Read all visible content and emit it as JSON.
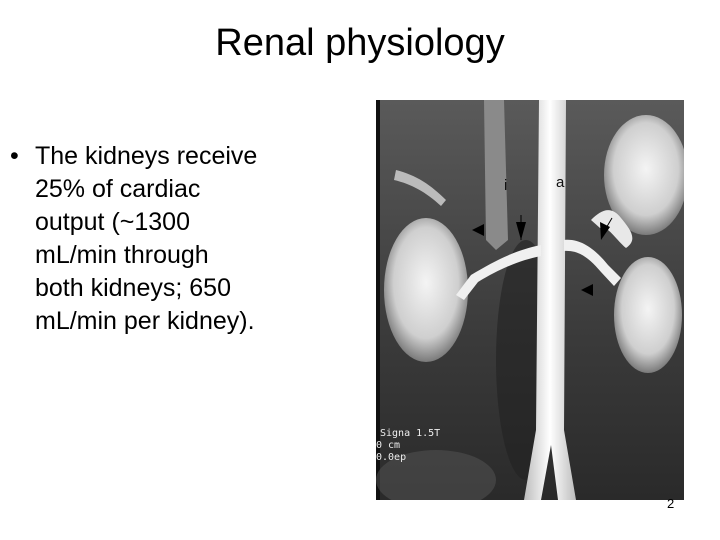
{
  "title": "Renal physiology",
  "bullet": {
    "marker": "•",
    "lines": [
      "The kidneys receive",
      "25% of cardiac",
      "output (~1300",
      "mL/min through",
      "both kidneys; 650",
      "mL/min per kidney)."
    ]
  },
  "image": {
    "labels": [
      "i",
      "a"
    ],
    "scanner_text": [
      "Signa 1.5T",
      "0 cm",
      "0.0ep"
    ]
  },
  "page_number": "2"
}
